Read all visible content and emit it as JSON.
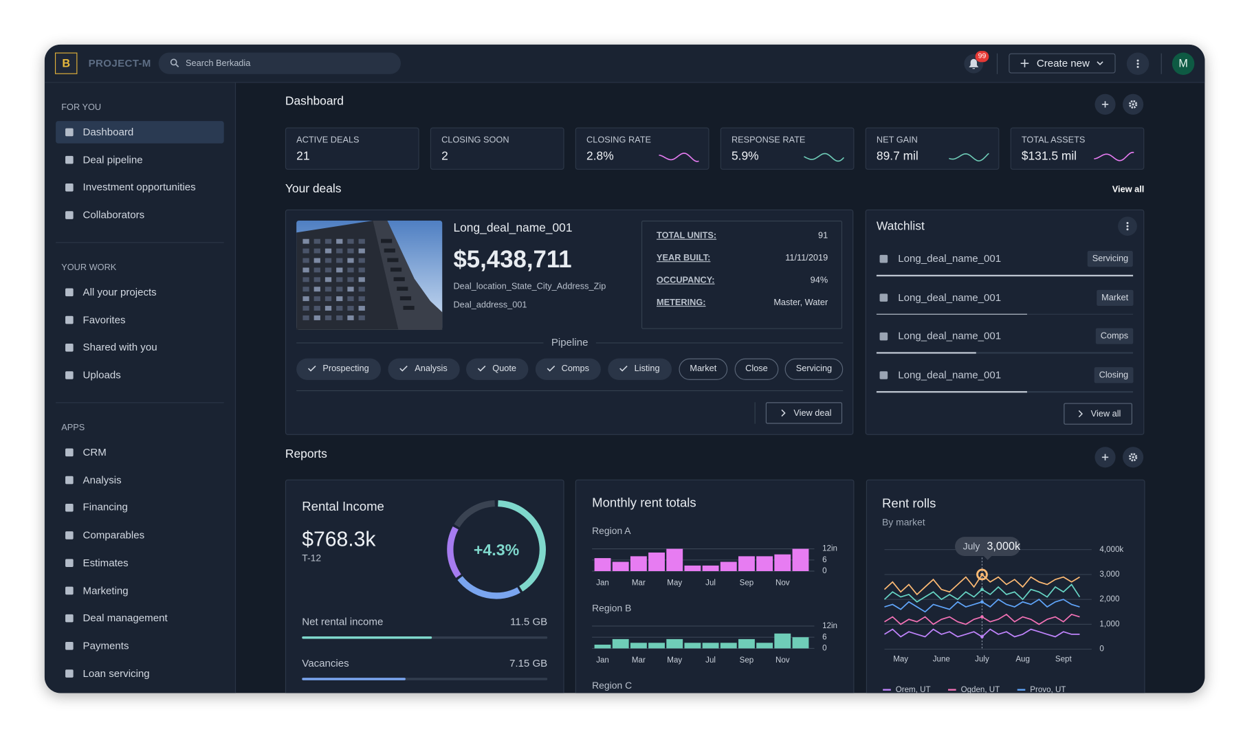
{
  "header": {
    "logo": "B",
    "app_name": "PROJECT-M",
    "search_placeholder": "Search Berkadia",
    "notification_count": "99",
    "create_button": "Create new",
    "avatar": "M"
  },
  "sidebar": [
    {
      "title": "FOR YOU",
      "items": [
        "Dashboard",
        "Deal pipeline",
        "Investment opportunities",
        "Collaborators"
      ]
    },
    {
      "title": "YOUR WORK",
      "items": [
        "All your projects",
        "Favorites",
        "Shared with you",
        "Uploads"
      ]
    },
    {
      "title": "APPS",
      "items": [
        "CRM",
        "Analysis",
        "Financing",
        "Comparables",
        "Estimates",
        "Marketing",
        "Deal management",
        "Payments",
        "Loan servicing"
      ]
    }
  ],
  "dashboard": {
    "title": "Dashboard",
    "kpis": [
      {
        "label": "ACTIVE DEALS",
        "value": "21"
      },
      {
        "label": "CLOSING SOON",
        "value": "2"
      },
      {
        "label": "CLOSING RATE",
        "value": "2.8%"
      },
      {
        "label": "RESPONSE RATE",
        "value": "5.9%"
      },
      {
        "label": "NET GAIN",
        "value": "89.7 mil"
      },
      {
        "label": "TOTAL ASSETS",
        "value": "$131.5 mil"
      }
    ]
  },
  "deals": {
    "title": "Your deals",
    "view_all": "View all",
    "deal": {
      "name": "Long_deal_name_001",
      "amount": "$5,438,711",
      "location": "Deal_location_State_City_Address_Zip",
      "address": "Deal_address_001",
      "facts": [
        {
          "label": "TOTAL UNITS:",
          "value": "91"
        },
        {
          "label": "YEAR BUILT:",
          "value": "11/11/2019"
        },
        {
          "label": "OCCUPANCY:",
          "value": "94%"
        },
        {
          "label": "METERING:",
          "value": "Master, Water"
        }
      ],
      "pipeline_title": "Pipeline",
      "stages": [
        {
          "name": "Prospecting",
          "done": true
        },
        {
          "name": "Analysis",
          "done": true
        },
        {
          "name": "Quote",
          "done": true
        },
        {
          "name": "Comps",
          "done": true
        },
        {
          "name": "Listing",
          "done": true
        },
        {
          "name": "Market",
          "done": false
        },
        {
          "name": "Close",
          "done": false
        },
        {
          "name": "Servicing",
          "done": false
        }
      ],
      "view_deal": "View deal"
    }
  },
  "watchlist": {
    "title": "Watchlist",
    "items": [
      {
        "name": "Long_deal_name_001",
        "tag": "Servicing"
      },
      {
        "name": "Long_deal_name_001",
        "tag": "Market"
      },
      {
        "name": "Long_deal_name_001",
        "tag": "Comps"
      },
      {
        "name": "Long_deal_name_001",
        "tag": "Closing"
      }
    ],
    "view_all": "View all"
  },
  "reports": {
    "title": "Reports",
    "rental_income": {
      "title": "Rental Income",
      "amount": "$768.3k",
      "period": "T-12",
      "change": "+4.3%",
      "metrics": [
        {
          "label": "Net rental income",
          "value": "11.5 GB"
        },
        {
          "label": "Vacancies",
          "value": "7.15 GB"
        }
      ]
    },
    "monthly_rent": {
      "title": "Monthly rent totals",
      "type": "bar",
      "categories": [
        "Jan",
        null,
        "Mar",
        null,
        "May",
        null,
        "Jul",
        null,
        "Sep",
        null,
        "Nov",
        null
      ],
      "ylim": [
        0,
        12
      ],
      "yticks": [
        0,
        6,
        {
          "value": 12,
          "label": "12in"
        }
      ],
      "regions": [
        {
          "name": "Region A",
          "color": "#e77cf2",
          "values": [
            7,
            5,
            8,
            10,
            12,
            3,
            3,
            5,
            8,
            8,
            9,
            12
          ]
        },
        {
          "name": "Region B",
          "color": "#6fcdb8",
          "values": [
            2,
            5,
            3,
            3,
            5,
            3,
            3,
            3,
            5,
            3,
            8,
            6
          ]
        },
        {
          "name": "Region C"
        }
      ]
    },
    "rent_rolls": {
      "title": "Rent rolls",
      "subtitle": "By market",
      "type": "line",
      "categories": [
        null,
        null,
        "May",
        null,
        null,
        null,
        null,
        "June",
        null,
        null,
        null,
        null,
        "July",
        null,
        null,
        null,
        null,
        "Aug",
        null,
        null,
        null,
        null,
        "Sept",
        null,
        null
      ],
      "ylim": [
        0,
        4000
      ],
      "yticks": [
        0,
        {
          "value": 1000,
          "label": "1,000"
        },
        {
          "value": 2000,
          "label": "2,000"
        },
        {
          "value": 3000,
          "label": "3,000"
        },
        {
          "value": 4000,
          "label": "4,000k"
        }
      ],
      "series": [
        {
          "name": "Orem, UT",
          "color": "#c084fc",
          "values": [
            600,
            800,
            500,
            700,
            600,
            500,
            800,
            600,
            700,
            500,
            600,
            700,
            500,
            800,
            600,
            700,
            500,
            600,
            800,
            700,
            600,
            500,
            700,
            600,
            600
          ]
        },
        {
          "name": "Ogden, UT",
          "color": "#f472b6",
          "values": [
            1100,
            1300,
            1000,
            1200,
            1100,
            1300,
            1000,
            1200,
            1300,
            1100,
            1000,
            1200,
            1300,
            1100,
            1200,
            1400,
            1100,
            1300,
            1200,
            1000,
            1200,
            1300,
            1100,
            1400,
            1300
          ]
        },
        {
          "name": "Provo, UT",
          "color": "#60a5fa",
          "values": [
            1700,
            1800,
            1600,
            1900,
            1700,
            1500,
            1800,
            1700,
            1600,
            1900,
            1700,
            1800,
            1900,
            1700,
            2000,
            1800,
            1700,
            1900,
            1800,
            2000,
            1700,
            1900,
            2000,
            1800,
            1700
          ]
        },
        {
          "color": "#67d4c4",
          "values": [
            2000,
            2300,
            2100,
            2200,
            1900,
            2100,
            2300,
            2000,
            2200,
            2000,
            2300,
            2100,
            2400,
            2200,
            2500,
            2200,
            2300,
            2000,
            2400,
            2300,
            2100,
            2500,
            2300,
            2600,
            2100
          ]
        },
        {
          "color": "#fdba74",
          "values": [
            2400,
            2700,
            2300,
            2600,
            2200,
            2500,
            2800,
            2400,
            2300,
            2600,
            2900,
            2500,
            3000,
            2700,
            2900,
            2600,
            2800,
            2500,
            2900,
            2700,
            2600,
            2800,
            2900,
            2700,
            2900
          ]
        }
      ],
      "tooltip": {
        "label": "July",
        "value": "3,000k"
      }
    }
  }
}
